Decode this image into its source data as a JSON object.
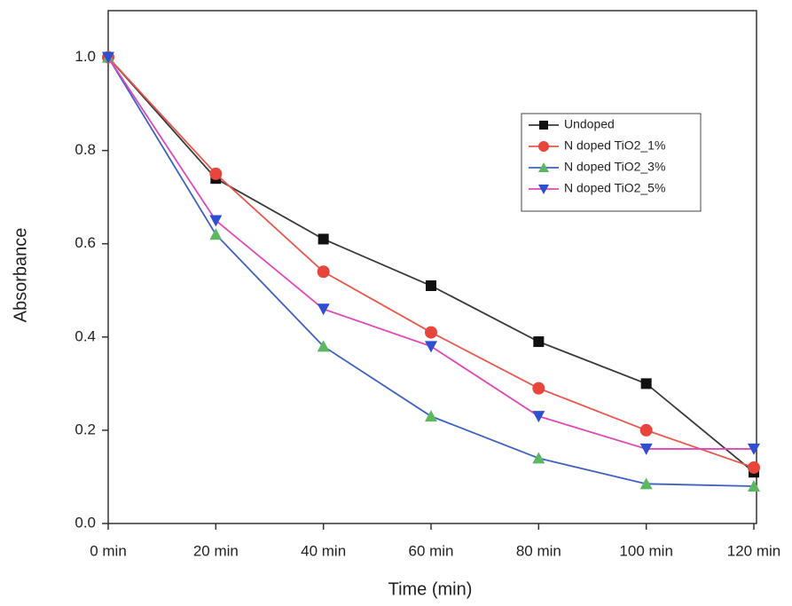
{
  "chart_data": {
    "type": "line",
    "xlabel": "Time (min)",
    "ylabel": "Absorbance",
    "categories": [
      "0 min",
      "20 min",
      "40 min",
      "60 min",
      "80 min",
      "100 min",
      "120 min"
    ],
    "ylim": [
      0,
      1.1
    ],
    "yticks": [
      {
        "value": 0,
        "label": "0.0"
      },
      0.2,
      0.4,
      0.6,
      0.8,
      {
        "value": 1,
        "label": "1.0"
      }
    ],
    "legend": "upper right",
    "series": [
      {
        "name": "Undoped",
        "color": "#3a3a3a",
        "marker_color": "#111111",
        "marker": "square",
        "values": [
          1.0,
          0.74,
          0.61,
          0.51,
          0.39,
          0.3,
          0.11
        ]
      },
      {
        "name": "N doped TiO2_1%",
        "color": "#e8584c",
        "marker_color": "#e8453c",
        "marker": "circle",
        "values": [
          1.0,
          0.75,
          0.54,
          0.41,
          0.29,
          0.2,
          0.12
        ]
      },
      {
        "name": "N doped TiO2_3%",
        "color": "#3d62c0",
        "marker_color": "#5cb860",
        "marker": "triangle-up",
        "values": [
          1.0,
          0.62,
          0.38,
          0.23,
          0.14,
          0.085,
          0.08
        ]
      },
      {
        "name": "N doped TiO2_5%",
        "color": "#e048b8",
        "marker_color": "#2d4fd0",
        "marker": "triangle-down",
        "values": [
          1.0,
          0.65,
          0.46,
          0.38,
          0.23,
          0.16,
          0.16
        ]
      }
    ]
  }
}
